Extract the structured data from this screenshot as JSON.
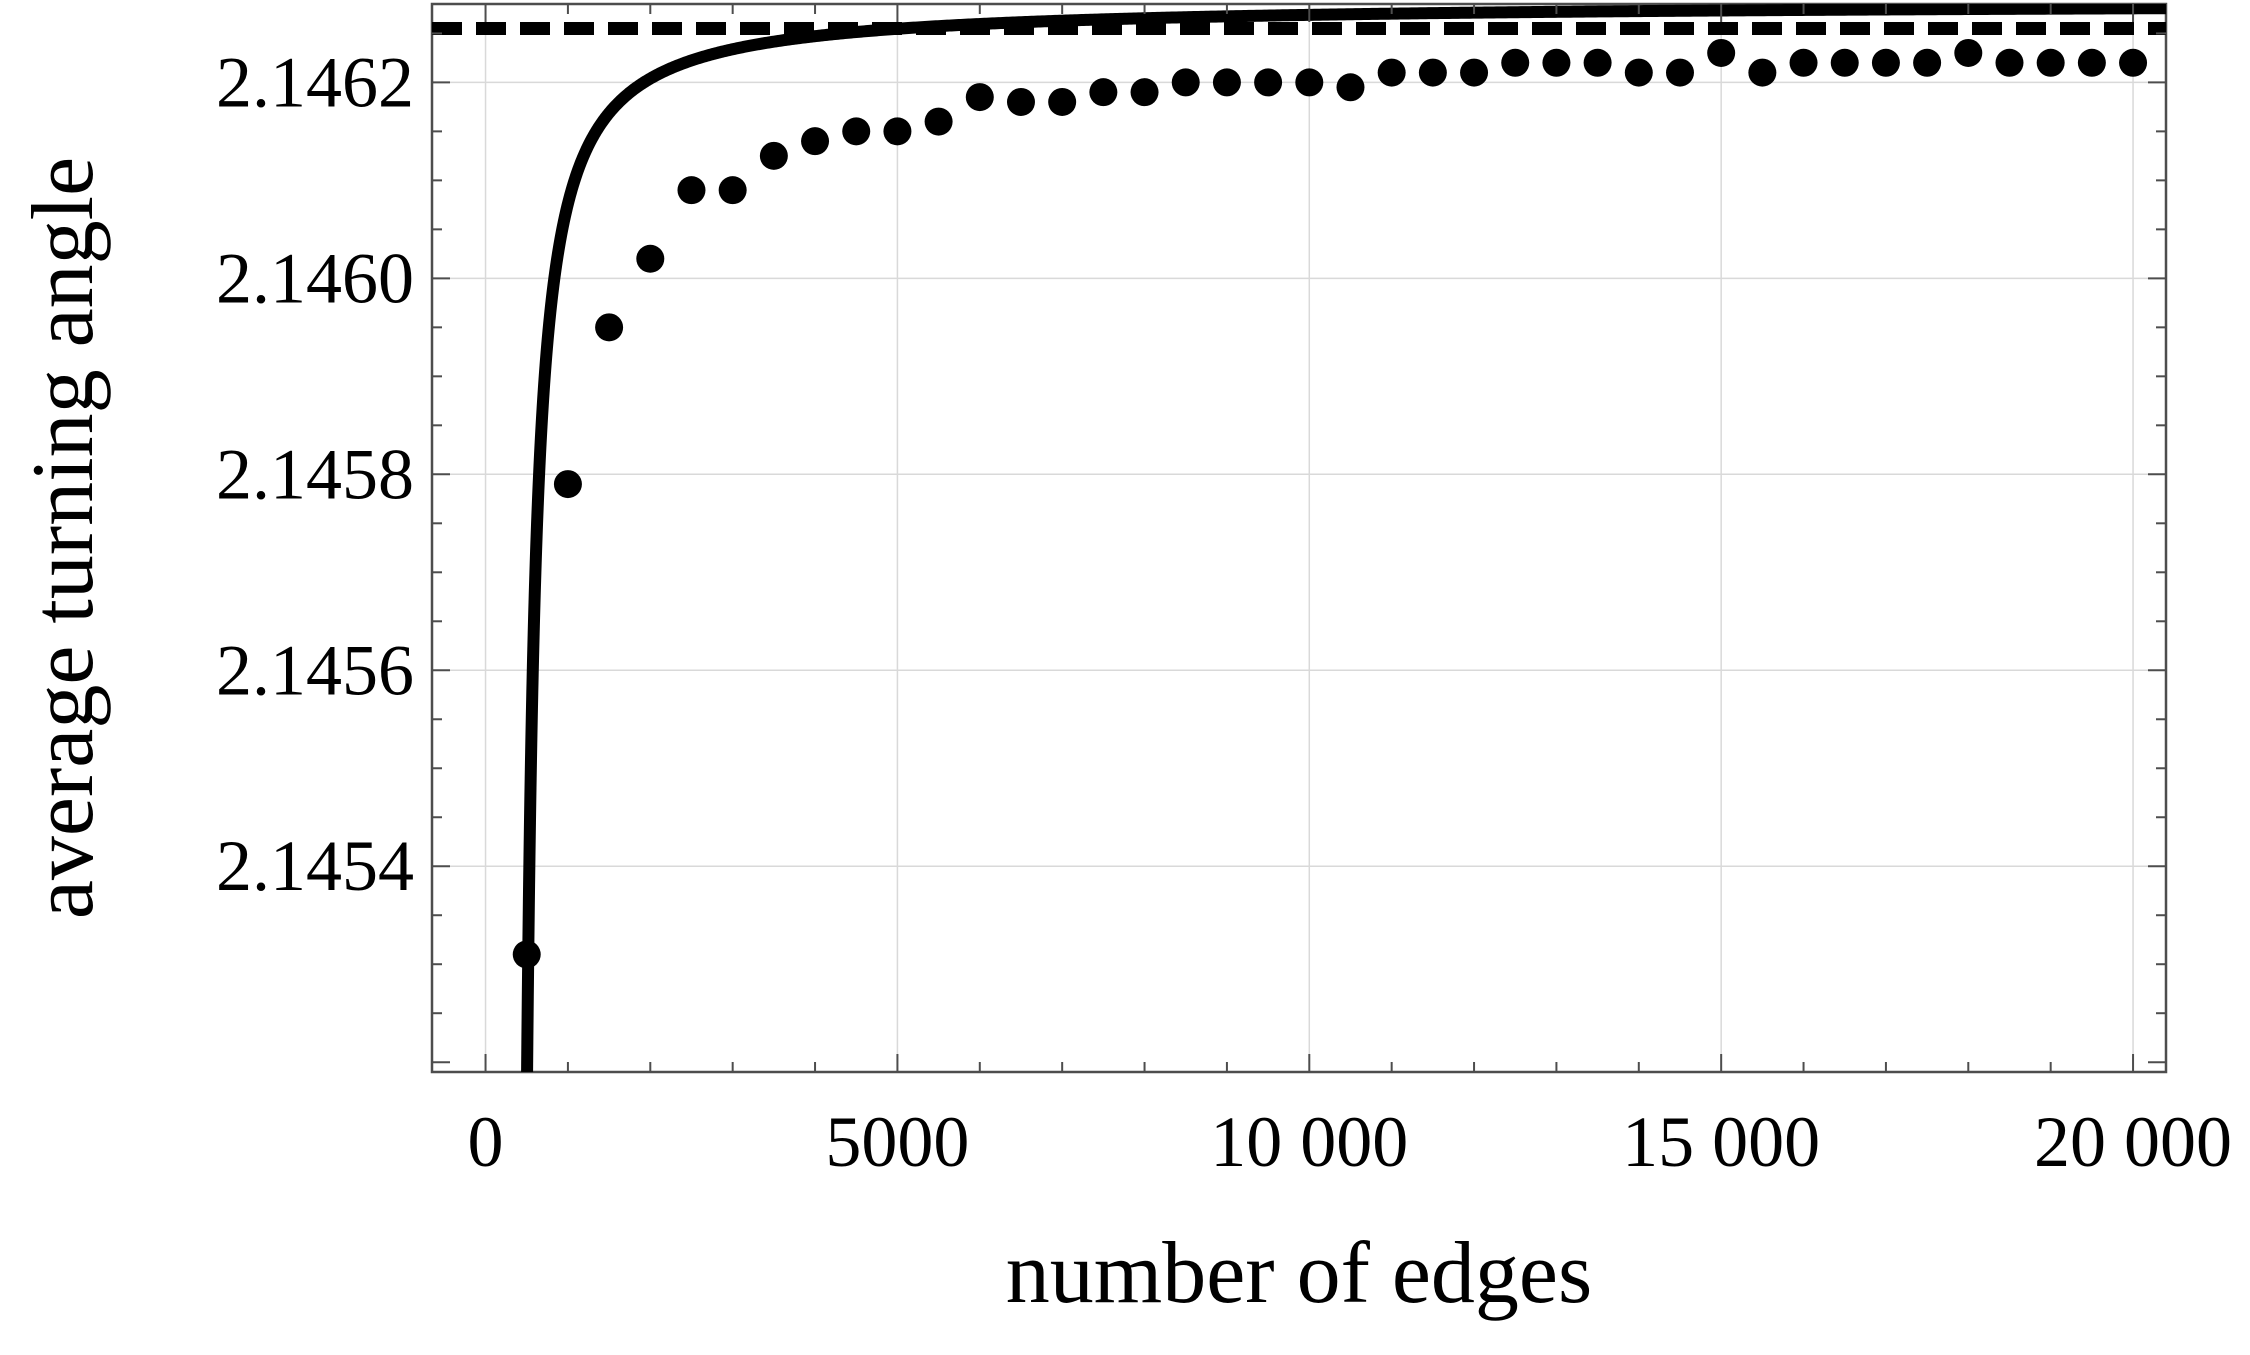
{
  "chart_data": {
    "type": "scatter",
    "xlabel": "number of edges",
    "ylabel": "average turning angle",
    "xlim": [
      -650,
      20400
    ],
    "ylim": [
      2.14519,
      2.14628
    ],
    "x_ticks": [
      {
        "value": 0,
        "label": "0"
      },
      {
        "value": 5000,
        "label": "5000"
      },
      {
        "value": 10000,
        "label": "10 000"
      },
      {
        "value": 15000,
        "label": "15 000"
      },
      {
        "value": 20000,
        "label": "20 000"
      }
    ],
    "y_ticks": [
      {
        "value": 2.1454,
        "label": "2.1454"
      },
      {
        "value": 2.1456,
        "label": "2.1456"
      },
      {
        "value": 2.1458,
        "label": "2.1458"
      },
      {
        "value": 2.146,
        "label": "2.1460"
      },
      {
        "value": 2.1462,
        "label": "2.1462"
      }
    ],
    "grid": true,
    "asymptote": 2.146255,
    "points": [
      {
        "x": 500,
        "y": 2.14531
      },
      {
        "x": 1000,
        "y": 2.14579
      },
      {
        "x": 1500,
        "y": 2.14595
      },
      {
        "x": 2000,
        "y": 2.14602
      },
      {
        "x": 2500,
        "y": 2.14609
      },
      {
        "x": 3000,
        "y": 2.14609
      },
      {
        "x": 3500,
        "y": 2.146125
      },
      {
        "x": 4000,
        "y": 2.14614
      },
      {
        "x": 4500,
        "y": 2.14615
      },
      {
        "x": 5000,
        "y": 2.14615
      },
      {
        "x": 5500,
        "y": 2.14616
      },
      {
        "x": 6000,
        "y": 2.146185
      },
      {
        "x": 6500,
        "y": 2.14618
      },
      {
        "x": 7000,
        "y": 2.14618
      },
      {
        "x": 7500,
        "y": 2.14619
      },
      {
        "x": 8000,
        "y": 2.14619
      },
      {
        "x": 8500,
        "y": 2.1462
      },
      {
        "x": 9000,
        "y": 2.1462
      },
      {
        "x": 9500,
        "y": 2.1462
      },
      {
        "x": 10000,
        "y": 2.1462
      },
      {
        "x": 10500,
        "y": 2.146195
      },
      {
        "x": 11000,
        "y": 2.14621
      },
      {
        "x": 11500,
        "y": 2.14621
      },
      {
        "x": 12000,
        "y": 2.14621
      },
      {
        "x": 12500,
        "y": 2.14622
      },
      {
        "x": 13000,
        "y": 2.14622
      },
      {
        "x": 13500,
        "y": 2.14622
      },
      {
        "x": 14000,
        "y": 2.14621
      },
      {
        "x": 14500,
        "y": 2.14621
      },
      {
        "x": 15000,
        "y": 2.14623
      },
      {
        "x": 15500,
        "y": 2.14621
      },
      {
        "x": 16000,
        "y": 2.14622
      },
      {
        "x": 16500,
        "y": 2.14622
      },
      {
        "x": 17000,
        "y": 2.14622
      },
      {
        "x": 17500,
        "y": 2.14622
      },
      {
        "x": 18000,
        "y": 2.14623
      },
      {
        "x": 18500,
        "y": 2.14622
      },
      {
        "x": 19000,
        "y": 2.14622
      },
      {
        "x": 19500,
        "y": 2.14622
      },
      {
        "x": 20000,
        "y": 2.14622
      }
    ],
    "fit_curve": {
      "description": "y = a - b / (x - c)",
      "a": 2.146282,
      "b": 0.1258,
      "c": 389,
      "x_range": [
        500,
        20400
      ]
    },
    "colors": {
      "marks": "#000000",
      "grid": "#d9d9d9",
      "frame": "#4d4d4d"
    }
  }
}
